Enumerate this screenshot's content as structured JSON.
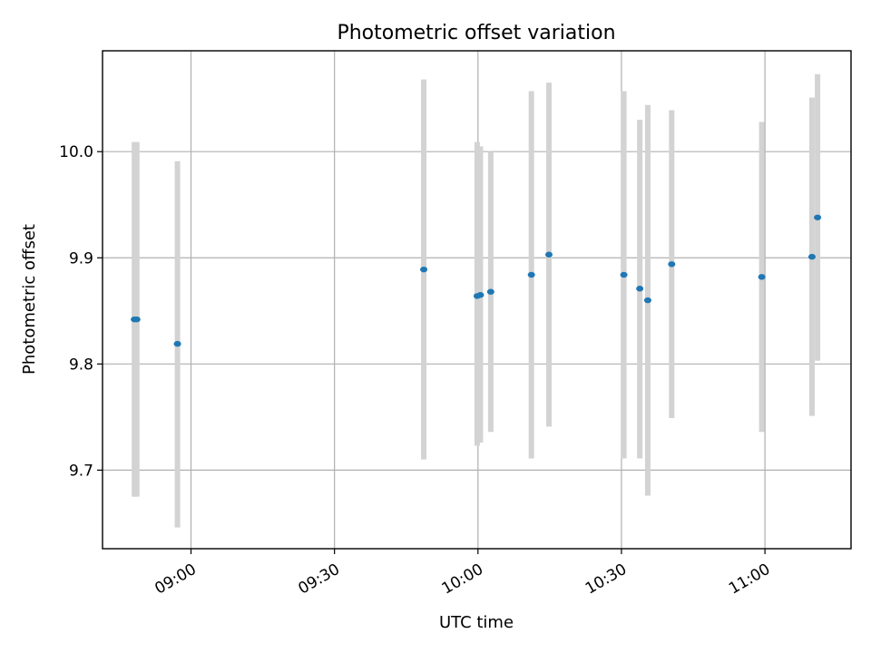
{
  "chart_data": {
    "type": "scatter",
    "title": "Photometric offset variation",
    "xlabel": "UTC time",
    "ylabel": "Photometric offset",
    "xlim": [
      "08:41:30",
      "11:18:00"
    ],
    "ylim": [
      9.626,
      10.095
    ],
    "x_ticks": [
      "09:00",
      "09:30",
      "10:00",
      "10:30",
      "11:00"
    ],
    "y_ticks": [
      "9.7",
      "9.8",
      "9.9",
      "10.0"
    ],
    "grid": true,
    "legend": "none",
    "colors": {
      "point": "#1f77b4",
      "error_bar": "#d3d3d3"
    },
    "points": [
      {
        "x": "08:48:10",
        "y": 9.842,
        "err_low": 9.675,
        "err_high": 10.009
      },
      {
        "x": "08:48:40",
        "y": 9.842,
        "err_low": 9.675,
        "err_high": 10.009
      },
      {
        "x": "08:57:10",
        "y": 9.819,
        "err_low": 9.646,
        "err_high": 9.991
      },
      {
        "x": "09:48:40",
        "y": 9.889,
        "err_low": 9.71,
        "err_high": 10.068
      },
      {
        "x": "09:59:50",
        "y": 9.864,
        "err_low": 9.723,
        "err_high": 10.009
      },
      {
        "x": "10:00:30",
        "y": 9.865,
        "err_low": 9.726,
        "err_high": 10.005
      },
      {
        "x": "10:02:40",
        "y": 9.868,
        "err_low": 9.736,
        "err_high": 10.0
      },
      {
        "x": "10:11:10",
        "y": 9.884,
        "err_low": 9.711,
        "err_high": 10.057
      },
      {
        "x": "10:14:50",
        "y": 9.903,
        "err_low": 9.741,
        "err_high": 10.065
      },
      {
        "x": "10:30:30",
        "y": 9.884,
        "err_low": 9.711,
        "err_high": 10.057
      },
      {
        "x": "10:33:50",
        "y": 9.871,
        "err_low": 9.711,
        "err_high": 10.03
      },
      {
        "x": "10:35:30",
        "y": 9.86,
        "err_low": 9.676,
        "err_high": 10.044
      },
      {
        "x": "10:40:30",
        "y": 9.894,
        "err_low": 9.749,
        "err_high": 10.039
      },
      {
        "x": "10:59:20",
        "y": 9.882,
        "err_low": 9.736,
        "err_high": 10.028
      },
      {
        "x": "11:09:50",
        "y": 9.901,
        "err_low": 9.751,
        "err_high": 10.051
      },
      {
        "x": "11:11:00",
        "y": 9.938,
        "err_low": 9.803,
        "err_high": 10.073
      }
    ]
  }
}
